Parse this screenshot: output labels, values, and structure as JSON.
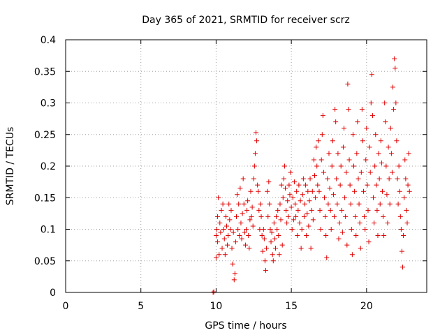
{
  "chart_data": {
    "type": "scatter",
    "title": "Day 365 of 2021, SRMTID for receiver scrz",
    "xlabel": "GPS time / hours",
    "ylabel": "SRMTID / TECUs",
    "xlim": [
      0,
      24
    ],
    "ylim": [
      0,
      0.4
    ],
    "xticks": [
      0,
      5,
      10,
      15,
      20
    ],
    "xtick_labels": [
      "0",
      "5",
      "10",
      "15",
      "20"
    ],
    "yticks": [
      0,
      0.05,
      0.1,
      0.15,
      0.2,
      0.25,
      0.3,
      0.35,
      0.4
    ],
    "ytick_labels": [
      "0",
      "0.05",
      "0.1",
      "0.15",
      "0.2",
      "0.25",
      "0.3",
      "0.35",
      "0.4"
    ],
    "grid": true,
    "marker": "plus",
    "color": "#e00000",
    "series": [
      {
        "name": "scrz",
        "points": [
          [
            9.8,
            0.0
          ],
          [
            9.85,
            0.001
          ],
          [
            10.0,
            0.055
          ],
          [
            10.0,
            0.09
          ],
          [
            10.05,
            0.1
          ],
          [
            10.1,
            0.12
          ],
          [
            10.1,
            0.08
          ],
          [
            10.15,
            0.15
          ],
          [
            10.2,
            0.06
          ],
          [
            10.25,
            0.11
          ],
          [
            10.3,
            0.095
          ],
          [
            10.35,
            0.13
          ],
          [
            10.4,
            0.07
          ],
          [
            10.45,
            0.14
          ],
          [
            10.5,
            0.1
          ],
          [
            10.55,
            0.085
          ],
          [
            10.6,
            0.06
          ],
          [
            10.65,
            0.12
          ],
          [
            10.7,
            0.105
          ],
          [
            10.75,
            0.075
          ],
          [
            10.8,
            0.09
          ],
          [
            10.85,
            0.14
          ],
          [
            10.9,
            0.115
          ],
          [
            10.95,
            0.1
          ],
          [
            11.0,
            0.13
          ],
          [
            11.05,
            0.07
          ],
          [
            11.1,
            0.045
          ],
          [
            11.15,
            0.095
          ],
          [
            11.2,
            0.02
          ],
          [
            11.25,
            0.03
          ],
          [
            11.3,
            0.08
          ],
          [
            11.35,
            0.12
          ],
          [
            11.4,
            0.155
          ],
          [
            11.45,
            0.1
          ],
          [
            11.5,
            0.14
          ],
          [
            11.55,
            0.09
          ],
          [
            11.6,
            0.165
          ],
          [
            11.65,
            0.11
          ],
          [
            11.7,
            0.085
          ],
          [
            11.75,
            0.125
          ],
          [
            11.8,
            0.18
          ],
          [
            11.85,
            0.14
          ],
          [
            11.9,
            0.095
          ],
          [
            11.95,
            0.075
          ],
          [
            12.0,
            0.1
          ],
          [
            12.05,
            0.13
          ],
          [
            12.1,
            0.145
          ],
          [
            12.15,
            0.09
          ],
          [
            12.2,
            0.07
          ],
          [
            12.25,
            0.115
          ],
          [
            12.3,
            0.16
          ],
          [
            12.35,
            0.12
          ],
          [
            12.4,
            0.135
          ],
          [
            12.45,
            0.105
          ],
          [
            12.5,
            0.18
          ],
          [
            12.55,
            0.2
          ],
          [
            12.6,
            0.22
          ],
          [
            12.65,
            0.253
          ],
          [
            12.7,
            0.24
          ],
          [
            12.75,
            0.17
          ],
          [
            12.8,
            0.16
          ],
          [
            12.85,
            0.13
          ],
          [
            12.9,
            0.1
          ],
          [
            12.95,
            0.14
          ],
          [
            13.0,
            0.12
          ],
          [
            13.05,
            0.09
          ],
          [
            13.1,
            0.065
          ],
          [
            13.15,
            0.1
          ],
          [
            13.2,
            0.085
          ],
          [
            13.25,
            0.05
          ],
          [
            13.3,
            0.035
          ],
          [
            13.35,
            0.07
          ],
          [
            13.4,
            0.16
          ],
          [
            13.45,
            0.12
          ],
          [
            13.5,
            0.175
          ],
          [
            13.55,
            0.14
          ],
          [
            13.6,
            0.1
          ],
          [
            13.65,
            0.08
          ],
          [
            13.7,
            0.095
          ],
          [
            13.75,
            0.06
          ],
          [
            13.8,
            0.05
          ],
          [
            13.85,
            0.11
          ],
          [
            13.9,
            0.085
          ],
          [
            13.95,
            0.07
          ],
          [
            14.0,
            0.12
          ],
          [
            14.05,
            0.1
          ],
          [
            14.1,
            0.13
          ],
          [
            14.15,
            0.09
          ],
          [
            14.2,
            0.06
          ],
          [
            14.25,
            0.14
          ],
          [
            14.3,
            0.115
          ],
          [
            14.35,
            0.17
          ],
          [
            14.4,
            0.075
          ],
          [
            14.45,
            0.15
          ],
          [
            14.5,
            0.18
          ],
          [
            14.55,
            0.2
          ],
          [
            14.6,
            0.165
          ],
          [
            14.65,
            0.13
          ],
          [
            14.7,
            0.11
          ],
          [
            14.75,
            0.145
          ],
          [
            14.8,
            0.12
          ],
          [
            14.85,
            0.17
          ],
          [
            14.9,
            0.155
          ],
          [
            14.95,
            0.19
          ],
          [
            15.0,
            0.135
          ],
          [
            15.05,
            0.1
          ],
          [
            15.1,
            0.15
          ],
          [
            15.15,
            0.115
          ],
          [
            15.2,
            0.175
          ],
          [
            15.25,
            0.14
          ],
          [
            15.3,
            0.12
          ],
          [
            15.35,
            0.16
          ],
          [
            15.4,
            0.09
          ],
          [
            15.45,
            0.13
          ],
          [
            15.5,
            0.17
          ],
          [
            15.55,
            0.11
          ],
          [
            15.6,
            0.145
          ],
          [
            15.65,
            0.07
          ],
          [
            15.7,
            0.1
          ],
          [
            15.75,
            0.155
          ],
          [
            15.8,
            0.18
          ],
          [
            15.85,
            0.12
          ],
          [
            15.9,
            0.14
          ],
          [
            15.95,
            0.17
          ],
          [
            16.0,
            0.09
          ],
          [
            16.05,
            0.125
          ],
          [
            16.1,
            0.16
          ],
          [
            16.15,
            0.105
          ],
          [
            16.2,
            0.145
          ],
          [
            16.25,
            0.18
          ],
          [
            16.3,
            0.07
          ],
          [
            16.35,
            0.13
          ],
          [
            16.4,
            0.16
          ],
          [
            16.45,
            0.115
          ],
          [
            16.5,
            0.21
          ],
          [
            16.55,
            0.185
          ],
          [
            16.6,
            0.15
          ],
          [
            16.65,
            0.23
          ],
          [
            16.7,
            0.2
          ],
          [
            16.75,
            0.17
          ],
          [
            16.8,
            0.24
          ],
          [
            16.85,
            0.16
          ],
          [
            16.9,
            0.13
          ],
          [
            16.95,
            0.1
          ],
          [
            17.0,
            0.21
          ],
          [
            17.05,
            0.25
          ],
          [
            17.1,
            0.28
          ],
          [
            17.15,
            0.19
          ],
          [
            17.2,
            0.15
          ],
          [
            17.25,
            0.12
          ],
          [
            17.3,
            0.09
          ],
          [
            17.35,
            0.055
          ],
          [
            17.4,
            0.18
          ],
          [
            17.45,
            0.14
          ],
          [
            17.5,
            0.22
          ],
          [
            17.55,
            0.165
          ],
          [
            17.6,
            0.13
          ],
          [
            17.65,
            0.1
          ],
          [
            17.7,
            0.2
          ],
          [
            17.75,
            0.24
          ],
          [
            17.8,
            0.155
          ],
          [
            17.85,
            0.12
          ],
          [
            17.9,
            0.29
          ],
          [
            17.95,
            0.27
          ],
          [
            18.0,
            0.18
          ],
          [
            18.05,
            0.14
          ],
          [
            18.1,
            0.22
          ],
          [
            18.15,
            0.085
          ],
          [
            18.2,
            0.11
          ],
          [
            18.25,
            0.17
          ],
          [
            18.3,
            0.2
          ],
          [
            18.35,
            0.13
          ],
          [
            18.4,
            0.095
          ],
          [
            18.45,
            0.23
          ],
          [
            18.5,
            0.26
          ],
          [
            18.55,
            0.15
          ],
          [
            18.6,
            0.12
          ],
          [
            18.65,
            0.19
          ],
          [
            18.7,
            0.075
          ],
          [
            18.75,
            0.33
          ],
          [
            18.8,
            0.29
          ],
          [
            18.85,
            0.21
          ],
          [
            18.9,
            0.17
          ],
          [
            18.95,
            0.14
          ],
          [
            19.0,
            0.1
          ],
          [
            19.05,
            0.06
          ],
          [
            19.1,
            0.25
          ],
          [
            19.15,
            0.2
          ],
          [
            19.2,
            0.16
          ],
          [
            19.25,
            0.12
          ],
          [
            19.3,
            0.09
          ],
          [
            19.35,
            0.22
          ],
          [
            19.4,
            0.27
          ],
          [
            19.45,
            0.18
          ],
          [
            19.5,
            0.14
          ],
          [
            19.55,
            0.11
          ],
          [
            19.6,
            0.07
          ],
          [
            19.65,
            0.19
          ],
          [
            19.7,
            0.29
          ],
          [
            19.75,
            0.24
          ],
          [
            19.8,
            0.16
          ],
          [
            19.85,
            0.12
          ],
          [
            19.9,
            0.1
          ],
          [
            19.95,
            0.21
          ],
          [
            20.0,
            0.26
          ],
          [
            20.05,
            0.17
          ],
          [
            20.1,
            0.13
          ],
          [
            20.15,
            0.08
          ],
          [
            20.2,
            0.23
          ],
          [
            20.25,
            0.19
          ],
          [
            20.3,
            0.3
          ],
          [
            20.35,
            0.345
          ],
          [
            20.4,
            0.28
          ],
          [
            20.45,
            0.15
          ],
          [
            20.5,
            0.11
          ],
          [
            20.55,
            0.2
          ],
          [
            20.6,
            0.25
          ],
          [
            20.65,
            0.17
          ],
          [
            20.7,
            0.13
          ],
          [
            20.75,
            0.09
          ],
          [
            20.8,
            0.22
          ],
          [
            20.85,
            0.18
          ],
          [
            20.9,
            0.14
          ],
          [
            20.95,
            0.24
          ],
          [
            21.0,
            0.205
          ],
          [
            21.05,
            0.16
          ],
          [
            21.1,
            0.12
          ],
          [
            21.15,
            0.09
          ],
          [
            21.2,
            0.3
          ],
          [
            21.25,
            0.27
          ],
          [
            21.3,
            0.2
          ],
          [
            21.35,
            0.155
          ],
          [
            21.4,
            0.11
          ],
          [
            21.45,
            0.23
          ],
          [
            21.5,
            0.18
          ],
          [
            21.55,
            0.14
          ],
          [
            21.6,
            0.26
          ],
          [
            21.65,
            0.22
          ],
          [
            21.7,
            0.19
          ],
          [
            21.75,
            0.325
          ],
          [
            21.8,
            0.29
          ],
          [
            21.85,
            0.37
          ],
          [
            21.9,
            0.355
          ],
          [
            21.95,
            0.3
          ],
          [
            22.0,
            0.24
          ],
          [
            22.05,
            0.18
          ],
          [
            22.1,
            0.14
          ],
          [
            22.15,
            0.2
          ],
          [
            22.2,
            0.16
          ],
          [
            22.25,
            0.12
          ],
          [
            22.3,
            0.1
          ],
          [
            22.35,
            0.065
          ],
          [
            22.4,
            0.04
          ],
          [
            22.45,
            0.09
          ],
          [
            22.5,
            0.15
          ],
          [
            22.55,
            0.21
          ],
          [
            22.6,
            0.18
          ],
          [
            22.65,
            0.13
          ],
          [
            22.7,
            0.11
          ],
          [
            22.75,
            0.17
          ],
          [
            22.8,
            0.22
          ],
          [
            22.85,
            0.16
          ]
        ]
      }
    ]
  }
}
